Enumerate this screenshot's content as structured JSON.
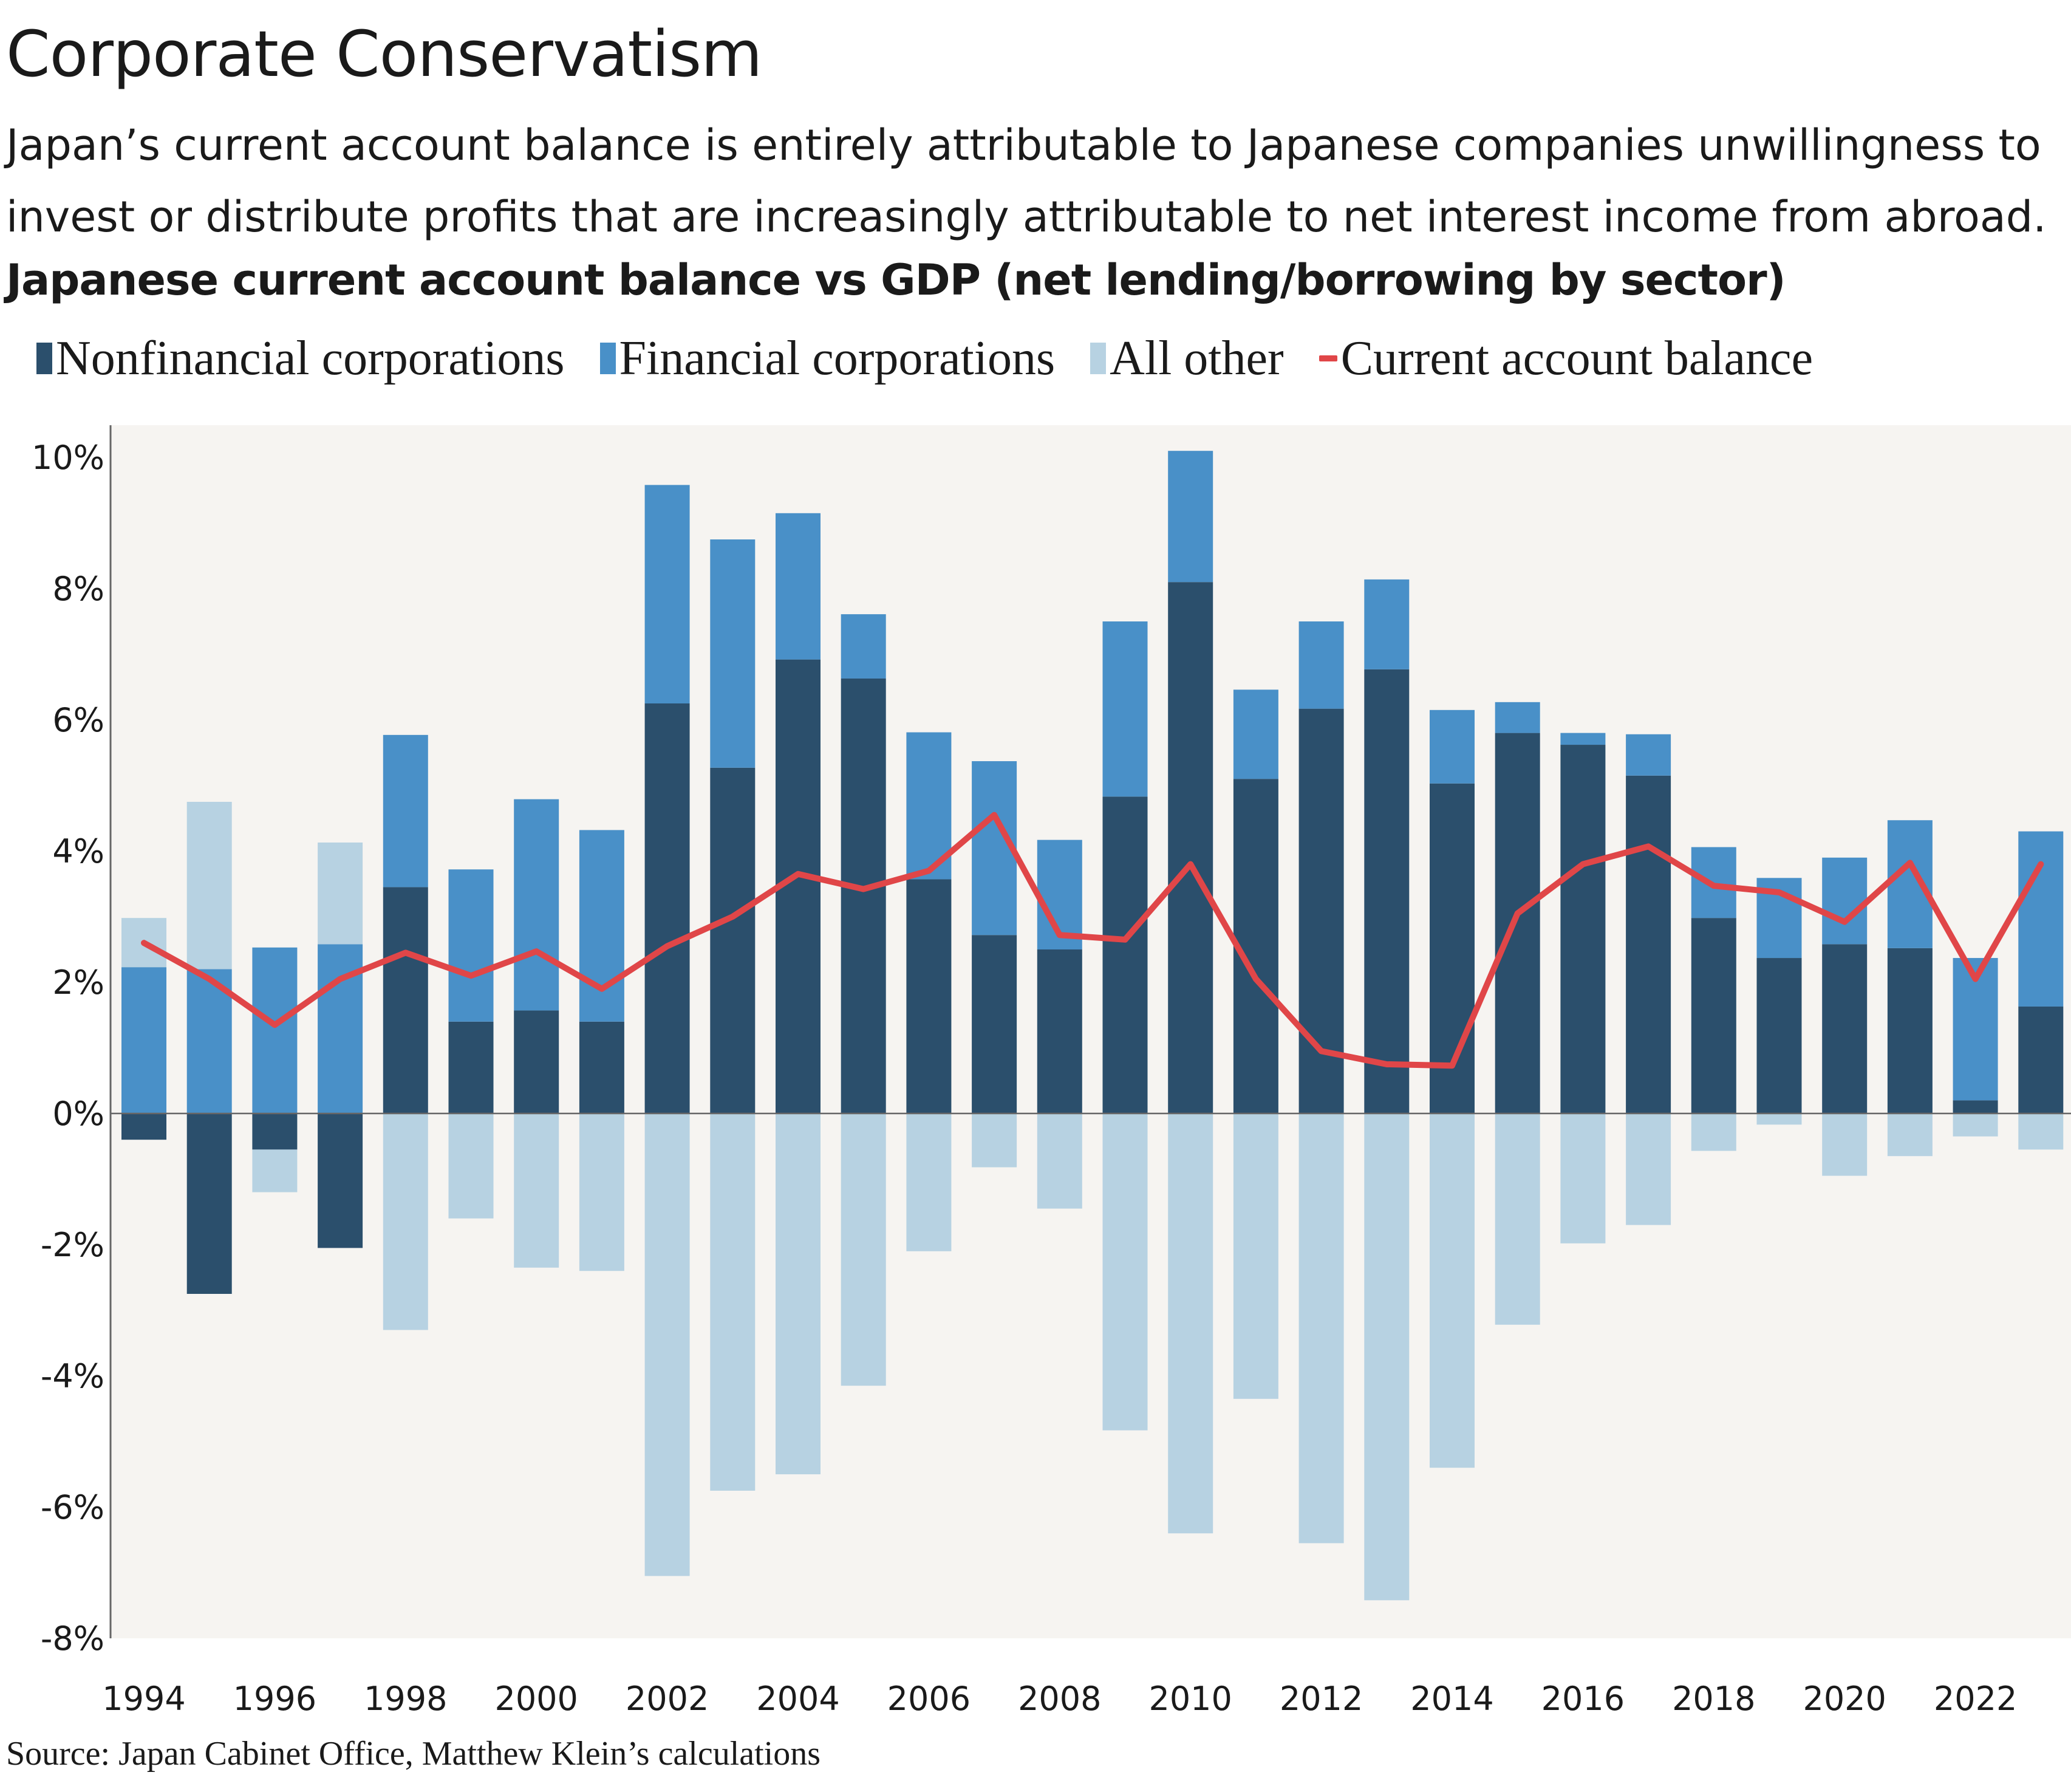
{
  "page": {
    "title": "Corporate Conservatism",
    "subtitle": "Japan’s current account balance is entirely attributable to Japanese companies unwillingness to invest or distribute profits that are increasingly attributable to net interest income from abroad.",
    "source": "Source: Japan Cabinet Office, Matthew Klein’s calculations"
  },
  "colors": {
    "nonfinancial": "#2b4f6c",
    "financial": "#4990c8",
    "other": "#b7d2e2",
    "current_account": "#e04648",
    "plot_bg": "#f6f4f1",
    "axis": "#666666"
  },
  "chart_data": {
    "type": "bar",
    "stacked": true,
    "title": "Japanese current account balance vs GDP (net lending/borrowing by sector)",
    "legend_position": "top",
    "grid": false,
    "ylim": [
      -8,
      10.5
    ],
    "yticks": [
      "10%",
      "8%",
      "6%",
      "4%",
      "2%",
      "0%",
      "-2%",
      "-4%",
      "-6%",
      "-8%"
    ],
    "ytick_values": [
      10,
      8,
      6,
      4,
      2,
      0,
      -2,
      -4,
      -6,
      -8
    ],
    "xticks": [
      "1994",
      "1996",
      "1998",
      "2000",
      "2002",
      "2004",
      "2006",
      "2008",
      "2010",
      "2012",
      "2014",
      "2016",
      "2018",
      "2020",
      "2022"
    ],
    "x": [
      1994,
      1995,
      1996,
      1997,
      1998,
      1999,
      2000,
      2001,
      2002,
      2003,
      2004,
      2005,
      2006,
      2007,
      2008,
      2009,
      2010,
      2011,
      2012,
      2013,
      2014,
      2015,
      2016,
      2017,
      2018,
      2019,
      2020,
      2021,
      2022,
      2023
    ],
    "series": [
      {
        "name": "Nonfinancial corporations",
        "kind": "bar",
        "values": [
          -0.4,
          -2.75,
          -0.55,
          -2.05,
          3.45,
          1.4,
          1.57,
          1.4,
          6.25,
          5.27,
          6.92,
          6.63,
          3.57,
          2.72,
          2.5,
          4.83,
          8.1,
          5.1,
          6.17,
          6.77,
          5.03,
          5.8,
          5.62,
          5.15,
          2.98,
          2.37,
          2.58,
          2.52,
          0.2,
          1.63
        ]
      },
      {
        "name": "Financial corporations",
        "kind": "bar",
        "values": [
          2.23,
          2.2,
          2.53,
          2.58,
          2.32,
          2.32,
          3.22,
          2.92,
          3.33,
          3.48,
          2.23,
          0.98,
          2.24,
          2.65,
          1.67,
          2.67,
          2.0,
          1.36,
          1.33,
          1.37,
          1.12,
          0.47,
          0.18,
          0.63,
          1.08,
          1.22,
          1.32,
          1.95,
          2.17,
          2.67
        ]
      },
      {
        "name": "All other",
        "kind": "bar",
        "values": [
          0.75,
          2.55,
          -0.65,
          1.55,
          -3.3,
          -1.6,
          -2.35,
          -2.4,
          -7.05,
          -5.75,
          -5.5,
          -4.15,
          -2.1,
          -0.82,
          -1.45,
          -4.83,
          -6.4,
          -4.35,
          -6.55,
          -7.42,
          -5.4,
          -3.22,
          -1.98,
          -1.7,
          -0.57,
          -0.17,
          -0.95,
          -0.65,
          -0.35,
          -0.55
        ]
      },
      {
        "name": "Current account balance",
        "kind": "line",
        "values": [
          2.6,
          2.05,
          1.35,
          2.05,
          2.45,
          2.1,
          2.47,
          1.9,
          2.55,
          3.0,
          3.65,
          3.42,
          3.7,
          4.55,
          2.72,
          2.65,
          3.8,
          2.05,
          0.95,
          0.75,
          0.73,
          3.05,
          3.8,
          4.07,
          3.47,
          3.37,
          2.92,
          3.82,
          2.05,
          3.8
        ]
      }
    ]
  }
}
